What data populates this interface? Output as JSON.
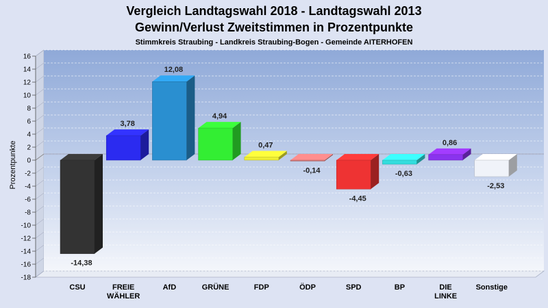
{
  "chart_data": {
    "type": "bar",
    "title": "Vergleich Landtagswahl 2018 - Landtagswahl 2013",
    "subtitle": "Gewinn/Verlust Zweitstimmen in Prozentpunkte",
    "subtitle2": "Stimmkreis Straubing - Landkreis Straubing-Bogen - Gemeinde AITERHOFEN",
    "ylabel": "Prozentpunkte",
    "ylim": [
      -18,
      16
    ],
    "yticks": [
      16,
      14,
      12,
      10,
      8,
      6,
      4,
      2,
      0,
      -2,
      -4,
      -6,
      -8,
      -10,
      -12,
      -14,
      -16,
      -18
    ],
    "grid": true,
    "categories": [
      "CSU",
      "FREIE|WÄHLER",
      "AfD",
      "GRÜNE",
      "FDP",
      "ÖDP",
      "SPD",
      "BP",
      "DIE|LINKE",
      "Sonstige"
    ],
    "values": [
      -14.38,
      3.78,
      12.08,
      4.94,
      0.47,
      -0.14,
      -4.45,
      -0.63,
      0.86,
      -2.53
    ],
    "value_labels": [
      "-14,38",
      "3,78",
      "12,08",
      "4,94",
      "0,47",
      "-0,14",
      "-4,45",
      "-0,63",
      "0,86",
      "-2,53"
    ],
    "colors": [
      "#333333",
      "#2b2bf0",
      "#2a8fd0",
      "#33ee33",
      "#eeee33",
      "#d87878",
      "#ee3333",
      "#33dddd",
      "#8a33ee",
      "#f0f3f9"
    ]
  }
}
